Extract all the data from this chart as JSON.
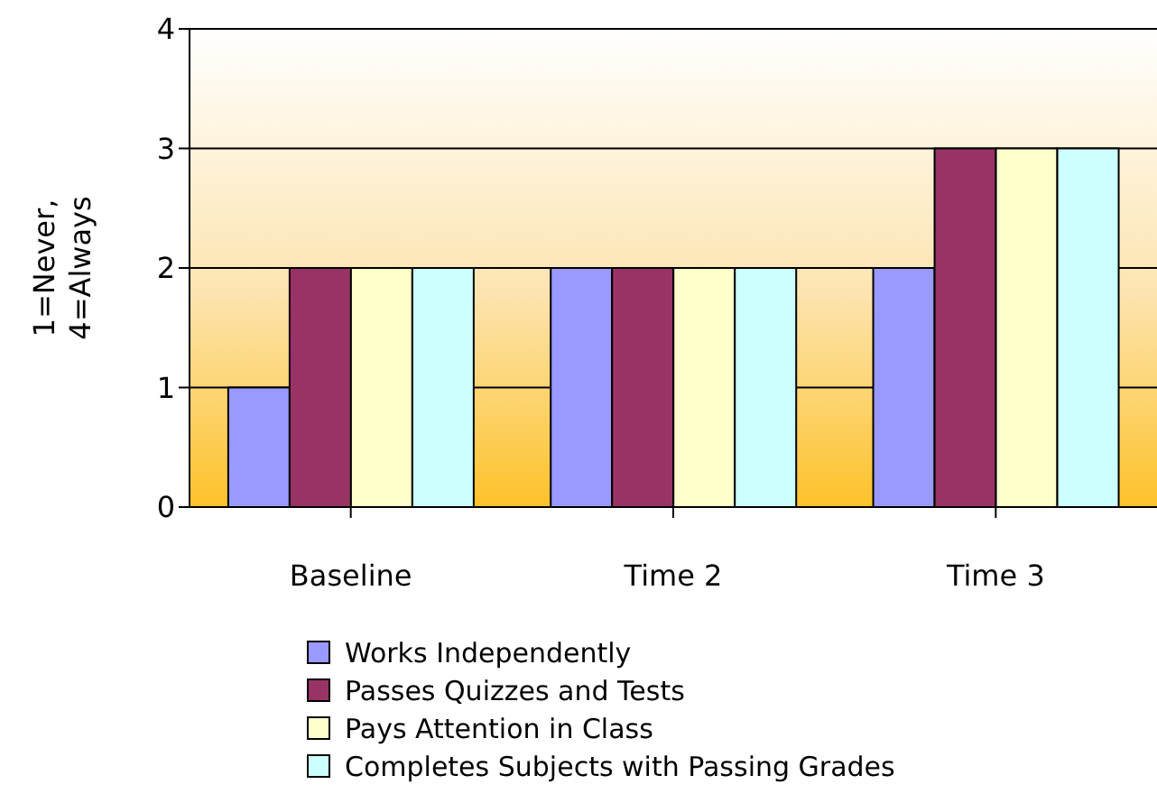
{
  "chart_data": {
    "type": "bar",
    "ylabel": "1=Never, 4=Always",
    "categories": [
      "Baseline",
      "Time 2",
      "Time 3"
    ],
    "series": [
      {
        "name": "Works Independently",
        "color": "#9999ff",
        "values": [
          1,
          2,
          2
        ]
      },
      {
        "name": "Passes Quizzes and Tests",
        "color": "#993366",
        "values": [
          2,
          2,
          3
        ]
      },
      {
        "name": "Pays Attention in Class",
        "color": "#ffffcc",
        "values": [
          2,
          2,
          3
        ]
      },
      {
        "name": "Completes Subjects with Passing Grades",
        "color": "#ccffff",
        "values": [
          2,
          2,
          3
        ]
      }
    ],
    "ylim": [
      0,
      4
    ],
    "yticks": [
      0,
      1,
      2,
      3,
      4
    ],
    "grid": "y",
    "legend": "bottom"
  }
}
